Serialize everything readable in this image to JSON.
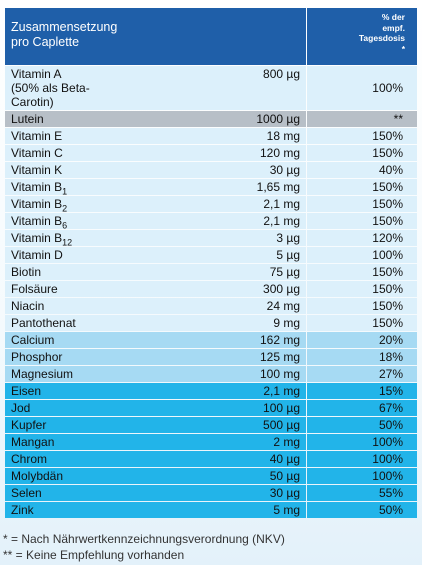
{
  "header": {
    "left_lines": [
      "Zusammensetzung",
      "pro Caplette"
    ],
    "right_lines": [
      "% der",
      "empf.",
      "Tagesdosis",
      "*"
    ]
  },
  "table": {
    "groups": [
      {
        "color": "#dcf0fb",
        "rows": [
          {
            "name_lines": [
              "Vitamin A",
              "(50% als Beta-",
              "Carotin)"
            ],
            "amount": "800 µg",
            "percent": "100%"
          }
        ]
      },
      {
        "color": "#b7bfc7",
        "rows": [
          {
            "name": "Lutein",
            "amount": "1000 µg",
            "percent": "**"
          }
        ]
      },
      {
        "color": "#dcf0fb",
        "rows": [
          {
            "name": "Vitamin E",
            "amount": "18 mg",
            "percent": "150%"
          },
          {
            "name": "Vitamin C",
            "amount": "120 mg",
            "percent": "150%"
          },
          {
            "name": "Vitamin K",
            "amount": "30 µg",
            "percent": "40%"
          },
          {
            "name": "Vitamin B",
            "sub": "1",
            "amount": "1,65 mg",
            "percent": "150%"
          },
          {
            "name": "Vitamin B",
            "sub": "2",
            "amount": "2,1 mg",
            "percent": "150%"
          },
          {
            "name": "Vitamin B",
            "sub": "6",
            "amount": "2,1 mg",
            "percent": "150%"
          },
          {
            "name": "Vitamin B",
            "sub": "12",
            "amount": "3 µg",
            "percent": "120%"
          },
          {
            "name": "Vitamin D",
            "amount": "5 µg",
            "percent": "100%"
          },
          {
            "name": "Biotin",
            "amount": "75 µg",
            "percent": "150%"
          },
          {
            "name": "Folsäure",
            "amount": "300 µg",
            "percent": "150%"
          },
          {
            "name": "Niacin",
            "amount": "24 mg",
            "percent": "150%"
          },
          {
            "name": "Pantothenat",
            "amount": "9 mg",
            "percent": "150%"
          }
        ]
      },
      {
        "color": "#a6daf3",
        "rows": [
          {
            "name": "Calcium",
            "amount": "162 mg",
            "percent": "20%"
          },
          {
            "name": "Phosphor",
            "amount": "125 mg",
            "percent": "18%"
          },
          {
            "name": "Magnesium",
            "amount": "100 mg",
            "percent": "27%"
          }
        ]
      },
      {
        "color": "#22b4e9",
        "rows": [
          {
            "name": "Eisen",
            "amount": "2,1 mg",
            "percent": "15%"
          },
          {
            "name": "Jod",
            "amount": "100 µg",
            "percent": "67%"
          },
          {
            "name": "Kupfer",
            "amount": "500 µg",
            "percent": "50%"
          },
          {
            "name": "Mangan",
            "amount": "2 mg",
            "percent": "100%"
          },
          {
            "name": "Chrom",
            "amount": "40 µg",
            "percent": "100%"
          },
          {
            "name": "Molybdän",
            "amount": "50 µg",
            "percent": "100%"
          },
          {
            "name": "Selen",
            "amount": "30 µg",
            "percent": "55%"
          },
          {
            "name": "Zink",
            "amount": "5 mg",
            "percent": "50%"
          }
        ]
      }
    ]
  },
  "footnotes": [
    "* = Nach Nährwertkennzeichnungsverordnung (NKV)",
    "** = Keine Empfehlung vorhanden"
  ]
}
